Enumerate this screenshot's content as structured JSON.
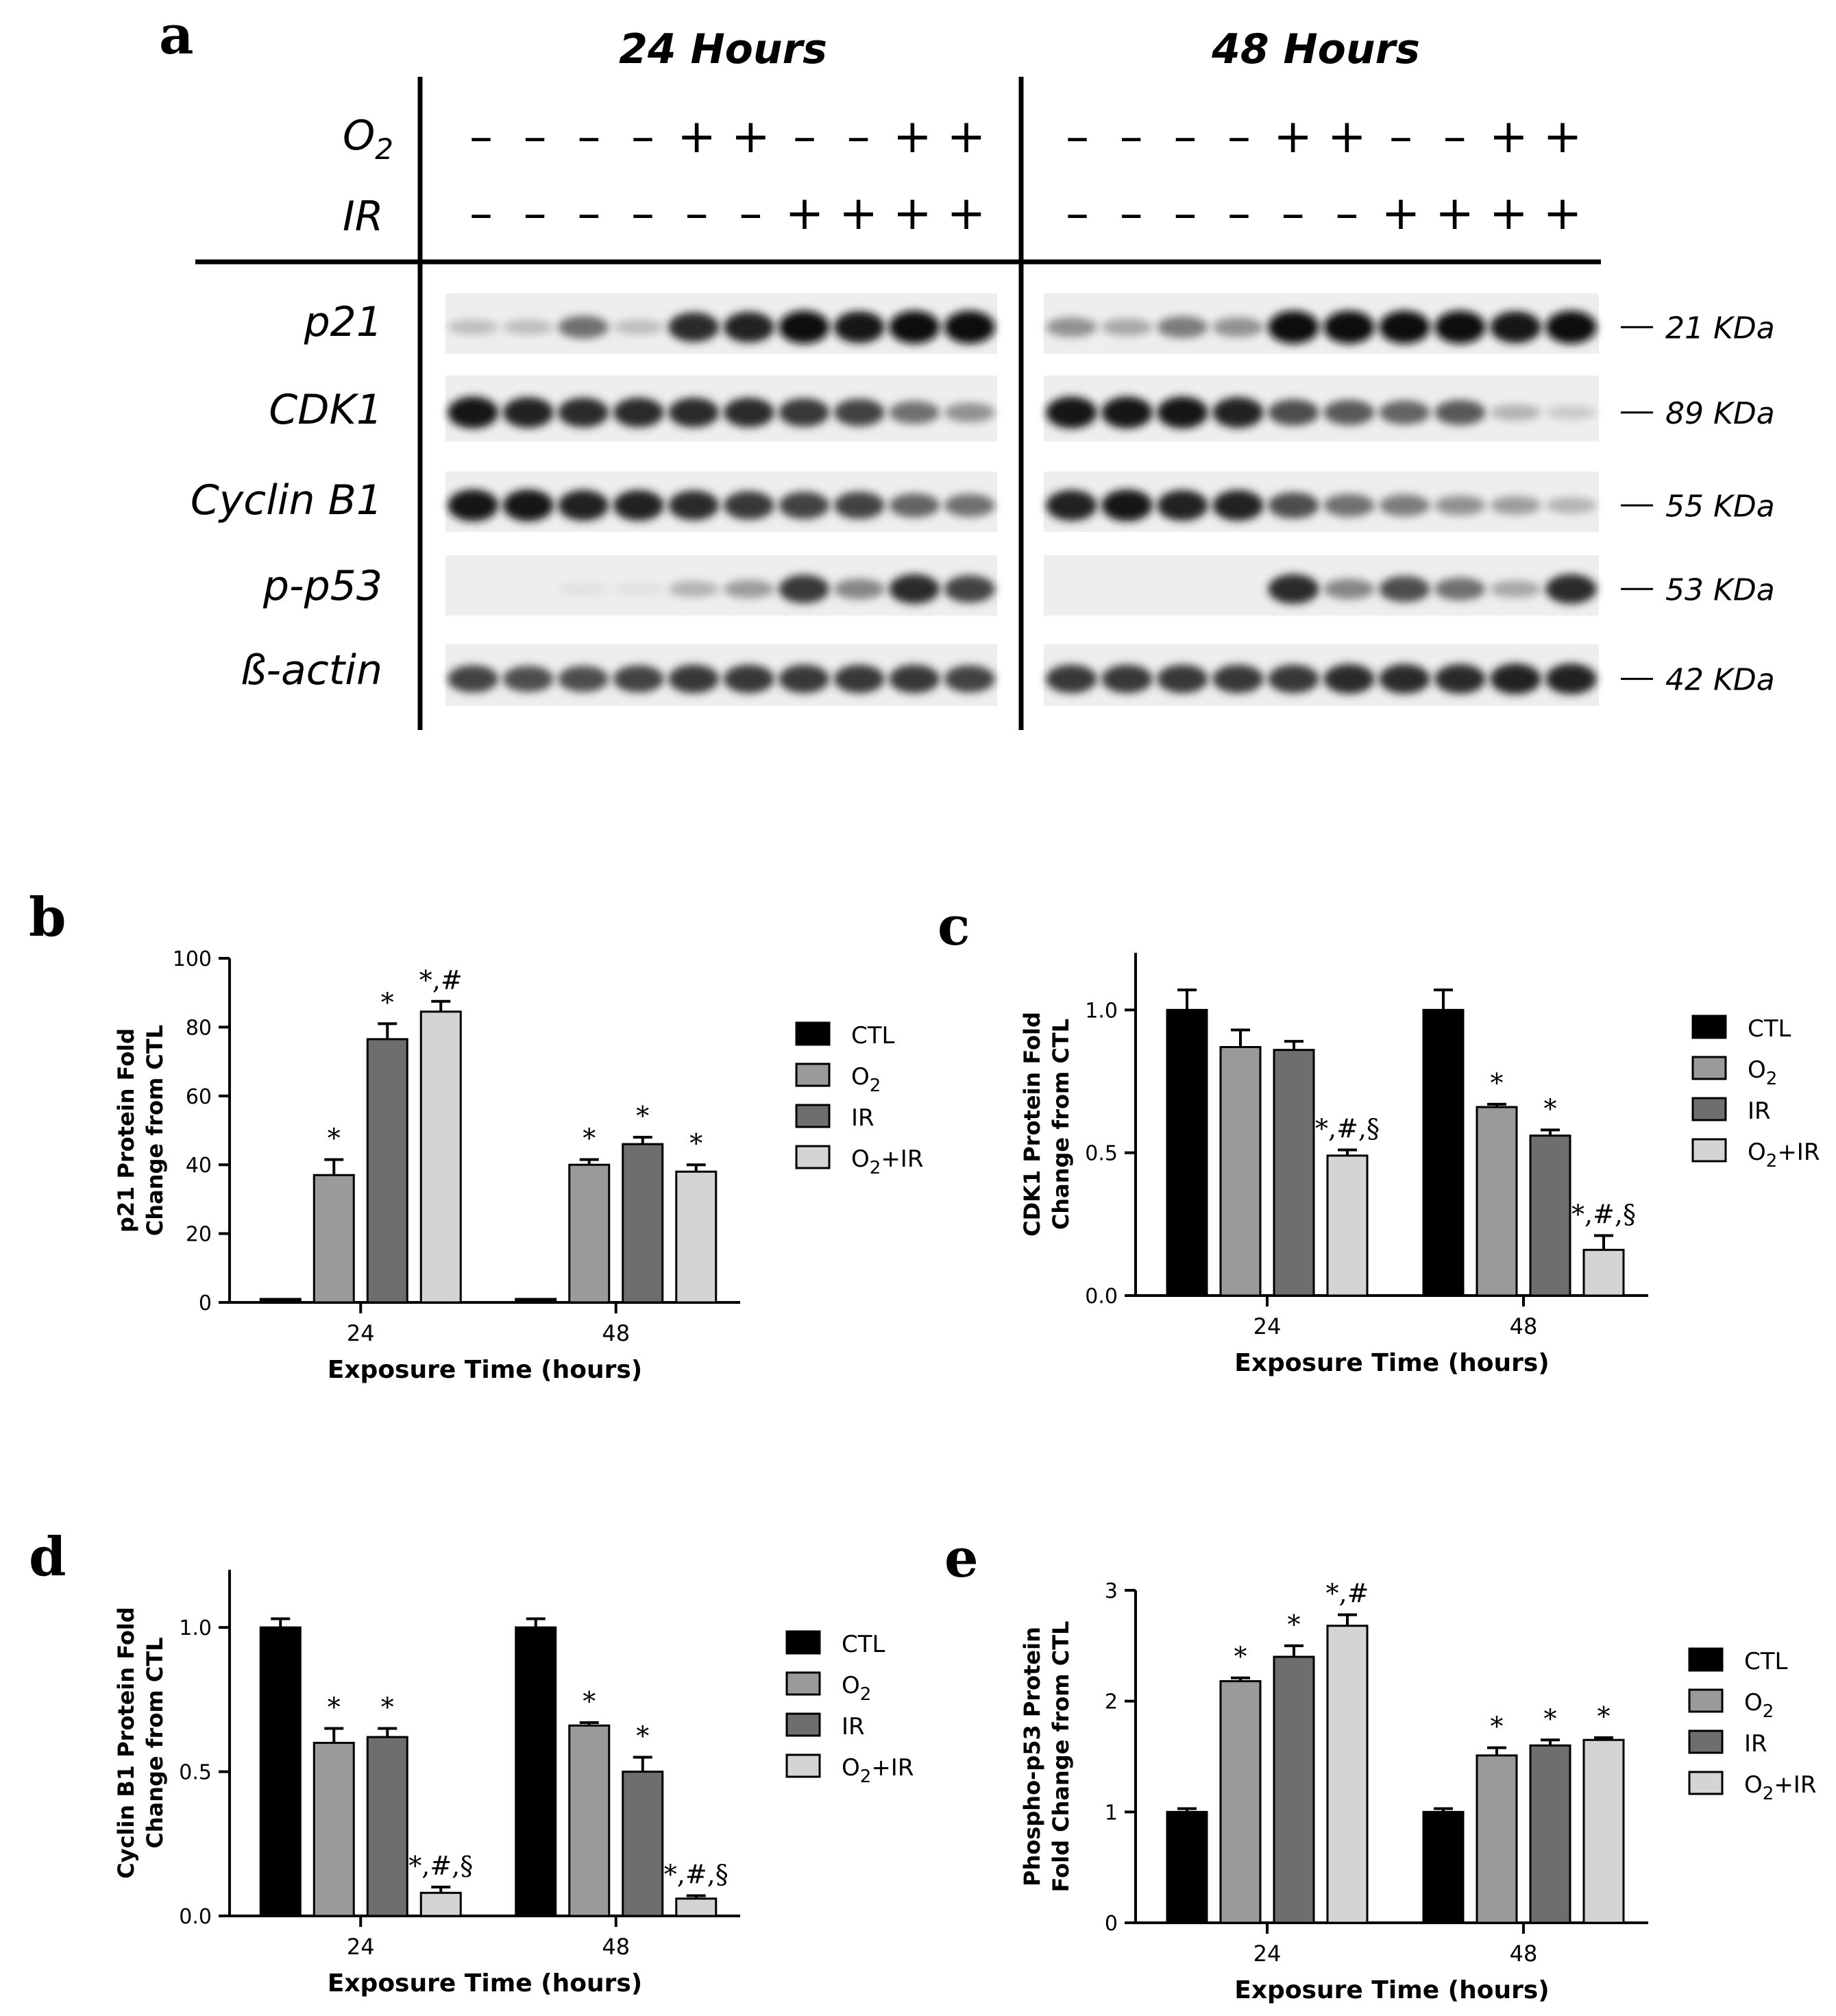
{
  "western_blot": {
    "panel_label": "a",
    "timepoints": [
      {
        "title": "24 Hours",
        "o2": [
          "–",
          "–",
          "–",
          "–",
          "+",
          "+",
          "–",
          "–",
          "+",
          "+"
        ],
        "ir": [
          "–",
          "–",
          "–",
          "–",
          "–",
          "–",
          "+",
          "+",
          "+",
          "+"
        ]
      },
      {
        "title": "48 Hours",
        "o2": [
          "–",
          "–",
          "–",
          "–",
          "+",
          "+",
          "–",
          "–",
          "+",
          "+"
        ],
        "ir": [
          "–",
          "–",
          "–",
          "–",
          "–",
          "–",
          "+",
          "+",
          "+",
          "+"
        ]
      }
    ],
    "condition_labels": {
      "o2_base": "O",
      "o2_sub": "2",
      "ir": "IR"
    },
    "blots": [
      {
        "protein": "p21",
        "kda": "21 KDa",
        "left": [
          0.2,
          0.2,
          0.55,
          0.2,
          0.85,
          0.9,
          1.0,
          0.95,
          1.0,
          1.0
        ],
        "right": [
          0.4,
          0.3,
          0.5,
          0.4,
          1.0,
          1.0,
          1.0,
          1.0,
          0.95,
          1.0
        ]
      },
      {
        "protein": "CDK1",
        "kda": "89 KDa",
        "left": [
          0.95,
          0.9,
          0.85,
          0.85,
          0.85,
          0.85,
          0.8,
          0.75,
          0.55,
          0.4
        ],
        "right": [
          0.95,
          0.95,
          0.95,
          0.9,
          0.7,
          0.65,
          0.6,
          0.65,
          0.25,
          0.15
        ]
      },
      {
        "protein": "Cyclin B1",
        "kda": "55 KDa",
        "left": [
          0.95,
          0.95,
          0.9,
          0.9,
          0.85,
          0.8,
          0.75,
          0.75,
          0.6,
          0.55
        ],
        "right": [
          0.9,
          0.95,
          0.9,
          0.9,
          0.7,
          0.55,
          0.5,
          0.4,
          0.35,
          0.25
        ]
      },
      {
        "protein": "p-p53",
        "kda": "53 KDa",
        "left": [
          0.0,
          0.0,
          0.05,
          0.05,
          0.25,
          0.35,
          0.8,
          0.45,
          0.85,
          0.75
        ],
        "right": [
          0.0,
          0.0,
          0.0,
          0.0,
          0.85,
          0.45,
          0.7,
          0.55,
          0.3,
          0.85
        ]
      },
      {
        "protein": "ß-actin",
        "kda": "42 KDa",
        "left": [
          0.75,
          0.7,
          0.7,
          0.75,
          0.8,
          0.8,
          0.8,
          0.8,
          0.8,
          0.75
        ],
        "right": [
          0.8,
          0.8,
          0.8,
          0.8,
          0.8,
          0.85,
          0.85,
          0.85,
          0.9,
          0.9
        ]
      }
    ]
  },
  "chart_data": [
    {
      "panel": "b",
      "type": "bar",
      "categories": [
        "24",
        "48"
      ],
      "xlabel": "Exposure Time (hours)",
      "ylabel": [
        "p21 Protein Fold",
        "Change from CTL"
      ],
      "ylim": [
        0,
        100
      ],
      "yticks": [
        0,
        20,
        40,
        60,
        80,
        100
      ],
      "ytick_labels": [
        "0",
        "20",
        "40",
        "60",
        "80",
        "100"
      ],
      "series": [
        {
          "name": "CTL",
          "values": [
            1,
            1
          ],
          "errors": [
            0,
            0
          ],
          "color": "#000000"
        },
        {
          "name": "O2",
          "values": [
            37,
            40
          ],
          "errors": [
            4.5,
            1.5
          ],
          "color": "#9a9a9a"
        },
        {
          "name": "IR",
          "values": [
            76.5,
            46
          ],
          "errors": [
            4.5,
            2
          ],
          "color": "#6e6e6e"
        },
        {
          "name": "O2+IR",
          "values": [
            84.5,
            38
          ],
          "errors": [
            3,
            2
          ],
          "color": "#d4d4d4"
        }
      ],
      "annotations": [
        [
          "",
          "*",
          "*",
          "*,#"
        ],
        [
          "",
          "*",
          "*",
          "*"
        ]
      ]
    },
    {
      "panel": "c",
      "type": "bar",
      "categories": [
        "24",
        "48"
      ],
      "xlabel": "Exposure Time (hours)",
      "ylabel": [
        "CDK1 Protein Fold",
        "Change from CTL"
      ],
      "ylim": [
        0,
        1.2
      ],
      "yticks": [
        0,
        0.5,
        1.0
      ],
      "ytick_labels": [
        "0.0",
        "0.5",
        "1.0"
      ],
      "series": [
        {
          "name": "CTL",
          "values": [
            1.0,
            1.0
          ],
          "errors": [
            0.07,
            0.07
          ],
          "color": "#000000"
        },
        {
          "name": "O2",
          "values": [
            0.87,
            0.66
          ],
          "errors": [
            0.06,
            0.01
          ],
          "color": "#9a9a9a"
        },
        {
          "name": "IR",
          "values": [
            0.86,
            0.56
          ],
          "errors": [
            0.03,
            0.02
          ],
          "color": "#6e6e6e"
        },
        {
          "name": "O2+IR",
          "values": [
            0.49,
            0.16
          ],
          "errors": [
            0.02,
            0.05
          ],
          "color": "#d4d4d4"
        }
      ],
      "annotations": [
        [
          "",
          "",
          "",
          "*,#,§"
        ],
        [
          "",
          "*",
          "*",
          "*,#,§"
        ]
      ]
    },
    {
      "panel": "d",
      "type": "bar",
      "categories": [
        "24",
        "48"
      ],
      "xlabel": "Exposure Time (hours)",
      "ylabel": [
        "Cyclin B1 Protein Fold",
        "Change from CTL"
      ],
      "ylim": [
        0,
        1.2
      ],
      "yticks": [
        0,
        0.5,
        1.0
      ],
      "ytick_labels": [
        "0.0",
        "0.5",
        "1.0"
      ],
      "series": [
        {
          "name": "CTL",
          "values": [
            1.0,
            1.0
          ],
          "errors": [
            0.03,
            0.03
          ],
          "color": "#000000"
        },
        {
          "name": "O2",
          "values": [
            0.6,
            0.66
          ],
          "errors": [
            0.05,
            0.01
          ],
          "color": "#9a9a9a"
        },
        {
          "name": "IR",
          "values": [
            0.62,
            0.5
          ],
          "errors": [
            0.03,
            0.05
          ],
          "color": "#6e6e6e"
        },
        {
          "name": "O2+IR",
          "values": [
            0.08,
            0.06
          ],
          "errors": [
            0.02,
            0.01
          ],
          "color": "#d4d4d4"
        }
      ],
      "annotations": [
        [
          "",
          "*",
          "*",
          "*,#,§"
        ],
        [
          "",
          "*",
          "*",
          "*,#,§"
        ]
      ]
    },
    {
      "panel": "e",
      "type": "bar",
      "categories": [
        "24",
        "48"
      ],
      "xlabel": "Exposure Time (hours)",
      "ylabel": [
        "Phospho-p53 Protein",
        "Fold Change from CTL"
      ],
      "ylim": [
        0,
        3
      ],
      "yticks": [
        0,
        1,
        2,
        3
      ],
      "ytick_labels": [
        "0",
        "1",
        "2",
        "3"
      ],
      "series": [
        {
          "name": "CTL",
          "values": [
            1.0,
            1.0
          ],
          "errors": [
            0.03,
            0.03
          ],
          "color": "#000000"
        },
        {
          "name": "O2",
          "values": [
            2.18,
            1.51
          ],
          "errors": [
            0.03,
            0.07
          ],
          "color": "#9a9a9a"
        },
        {
          "name": "IR",
          "values": [
            2.4,
            1.6
          ],
          "errors": [
            0.1,
            0.05
          ],
          "color": "#6e6e6e"
        },
        {
          "name": "O2+IR",
          "values": [
            2.68,
            1.65
          ],
          "errors": [
            0.1,
            0.02
          ],
          "color": "#d4d4d4"
        }
      ],
      "annotations": [
        [
          "",
          "*",
          "*",
          "*,#"
        ],
        [
          "",
          "*",
          "*",
          "*"
        ]
      ]
    }
  ]
}
